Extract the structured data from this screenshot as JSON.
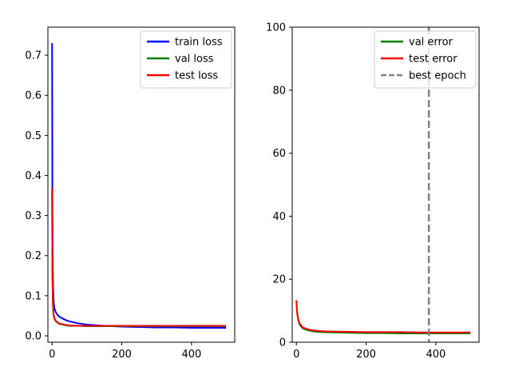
{
  "chart_data": [
    {
      "type": "line",
      "xlim": [
        -12,
        524
      ],
      "ylim": [
        -0.016,
        0.77
      ],
      "xticks": [
        0,
        200,
        400
      ],
      "yticks": [
        0.0,
        0.1,
        0.2,
        0.3,
        0.4,
        0.5,
        0.6,
        0.7
      ],
      "legend_position": "top-right",
      "grid": false,
      "series": [
        {
          "name": "train loss",
          "color": "#0000ff",
          "x": [
            0,
            1,
            2,
            3,
            4,
            5,
            7,
            10,
            15,
            20,
            30,
            40,
            50,
            75,
            100,
            150,
            200,
            250,
            300,
            350,
            400,
            450,
            499
          ],
          "y": [
            0.73,
            0.3,
            0.17,
            0.12,
            0.095,
            0.08,
            0.068,
            0.06,
            0.053,
            0.048,
            0.043,
            0.039,
            0.036,
            0.031,
            0.028,
            0.025,
            0.023,
            0.022,
            0.021,
            0.021,
            0.02,
            0.02,
            0.02
          ]
        },
        {
          "name": "val loss",
          "color": "#008000",
          "x": [
            0,
            1,
            2,
            3,
            4,
            5,
            7,
            10,
            15,
            20,
            30,
            40,
            50,
            75,
            100,
            150,
            200,
            250,
            300,
            350,
            400,
            450,
            499
          ],
          "y": [
            0.36,
            0.15,
            0.09,
            0.065,
            0.055,
            0.048,
            0.042,
            0.037,
            0.033,
            0.03,
            0.028,
            0.026,
            0.025,
            0.025,
            0.024,
            0.024,
            0.024,
            0.024,
            0.024,
            0.024,
            0.024,
            0.024,
            0.024
          ]
        },
        {
          "name": "test loss",
          "color": "#ff0000",
          "x": [
            0,
            1,
            2,
            3,
            4,
            5,
            7,
            10,
            15,
            20,
            30,
            40,
            50,
            75,
            100,
            150,
            200,
            250,
            300,
            350,
            400,
            450,
            499
          ],
          "y": [
            0.37,
            0.16,
            0.095,
            0.07,
            0.058,
            0.05,
            0.044,
            0.038,
            0.034,
            0.031,
            0.029,
            0.027,
            0.026,
            0.025,
            0.025,
            0.025,
            0.025,
            0.025,
            0.025,
            0.025,
            0.025,
            0.025,
            0.025
          ]
        }
      ]
    },
    {
      "type": "line",
      "xlim": [
        -12,
        524
      ],
      "ylim": [
        0,
        100
      ],
      "xticks": [
        0,
        200,
        400
      ],
      "yticks": [
        0,
        20,
        40,
        60,
        80,
        100
      ],
      "legend_position": "top-right",
      "grid": false,
      "series": [
        {
          "name": "val error",
          "color": "#008000",
          "x": [
            0,
            1,
            2,
            3,
            5,
            7,
            10,
            15,
            20,
            30,
            40,
            50,
            75,
            100,
            150,
            200,
            250,
            300,
            350,
            400,
            450,
            499
          ],
          "y": [
            13.0,
            11.0,
            9.5,
            8.5,
            7.2,
            6.3,
            5.5,
            4.8,
            4.3,
            3.9,
            3.6,
            3.4,
            3.2,
            3.1,
            3.0,
            2.9,
            2.9,
            2.8,
            2.8,
            2.8,
            2.8,
            2.8
          ]
        },
        {
          "name": "test error",
          "color": "#ff0000",
          "x": [
            0,
            1,
            2,
            3,
            5,
            7,
            10,
            15,
            20,
            30,
            40,
            50,
            75,
            100,
            150,
            200,
            250,
            300,
            350,
            400,
            450,
            499
          ],
          "y": [
            13.3,
            11.3,
            9.8,
            8.8,
            7.5,
            6.6,
            5.8,
            5.1,
            4.6,
            4.2,
            3.9,
            3.7,
            3.5,
            3.4,
            3.3,
            3.2,
            3.2,
            3.2,
            3.1,
            3.1,
            3.1,
            3.1
          ]
        }
      ],
      "reference_lines": [
        {
          "name": "best epoch",
          "orientation": "vertical",
          "x": 380,
          "color": "#808080",
          "style": "dashed"
        }
      ]
    }
  ]
}
